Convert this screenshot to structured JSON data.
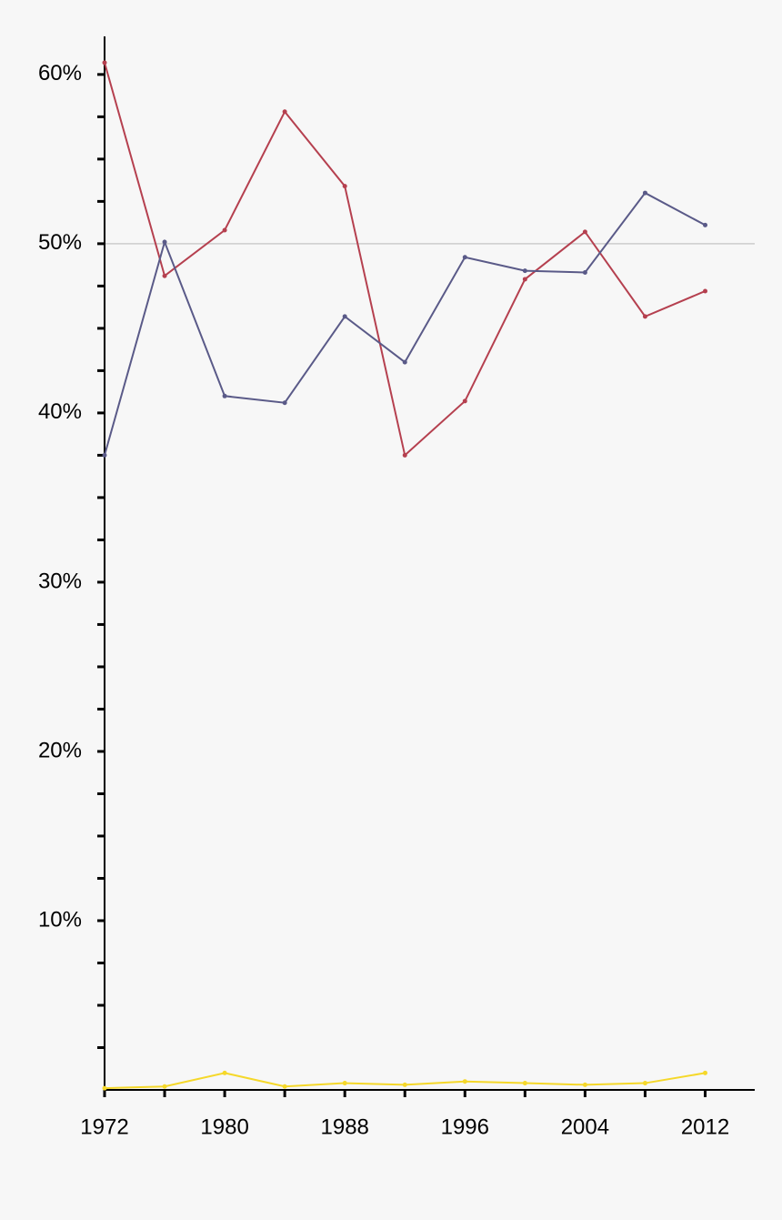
{
  "chart_data": {
    "type": "line",
    "x": [
      1972,
      1976,
      1980,
      1984,
      1988,
      1992,
      1996,
      2000,
      2004,
      2008,
      2012
    ],
    "series": [
      {
        "color": "#b5404f",
        "values": [
          60.7,
          48.1,
          50.8,
          57.8,
          53.4,
          37.5,
          40.7,
          47.9,
          50.7,
          45.7,
          47.2
        ]
      },
      {
        "color": "#5a5a88",
        "values": [
          37.5,
          50.1,
          41.0,
          40.6,
          45.7,
          43.0,
          49.2,
          48.4,
          48.3,
          53.0,
          51.1
        ]
      },
      {
        "color": "#f5d82a",
        "values": [
          0.1,
          0.2,
          1.0,
          0.2,
          0.4,
          0.3,
          0.5,
          0.4,
          0.3,
          0.4,
          1.0
        ]
      }
    ],
    "xlim": [
      1972,
      2015.3
    ],
    "xticks": [
      1972,
      1980,
      1988,
      1996,
      2004,
      2012
    ],
    "minor_xticks": [
      1976,
      1984,
      1992,
      2000,
      2008
    ],
    "ylim": [
      0,
      62.25
    ],
    "yticks": [
      {
        "value": 10,
        "label": "10%"
      },
      {
        "value": 20,
        "label": "20%"
      },
      {
        "value": 30,
        "label": "30%"
      },
      {
        "value": 40,
        "label": "40%"
      },
      {
        "value": 50,
        "label": "50%"
      },
      {
        "value": 60,
        "label": "60%"
      }
    ],
    "minor_yticks": [
      2.5,
      5,
      7.5,
      12.5,
      15,
      17.5,
      22.5,
      25,
      27.5,
      32.5,
      35,
      37.5,
      42.5,
      45,
      47.5,
      52.5,
      55,
      57.5
    ],
    "reference_line": 50
  }
}
